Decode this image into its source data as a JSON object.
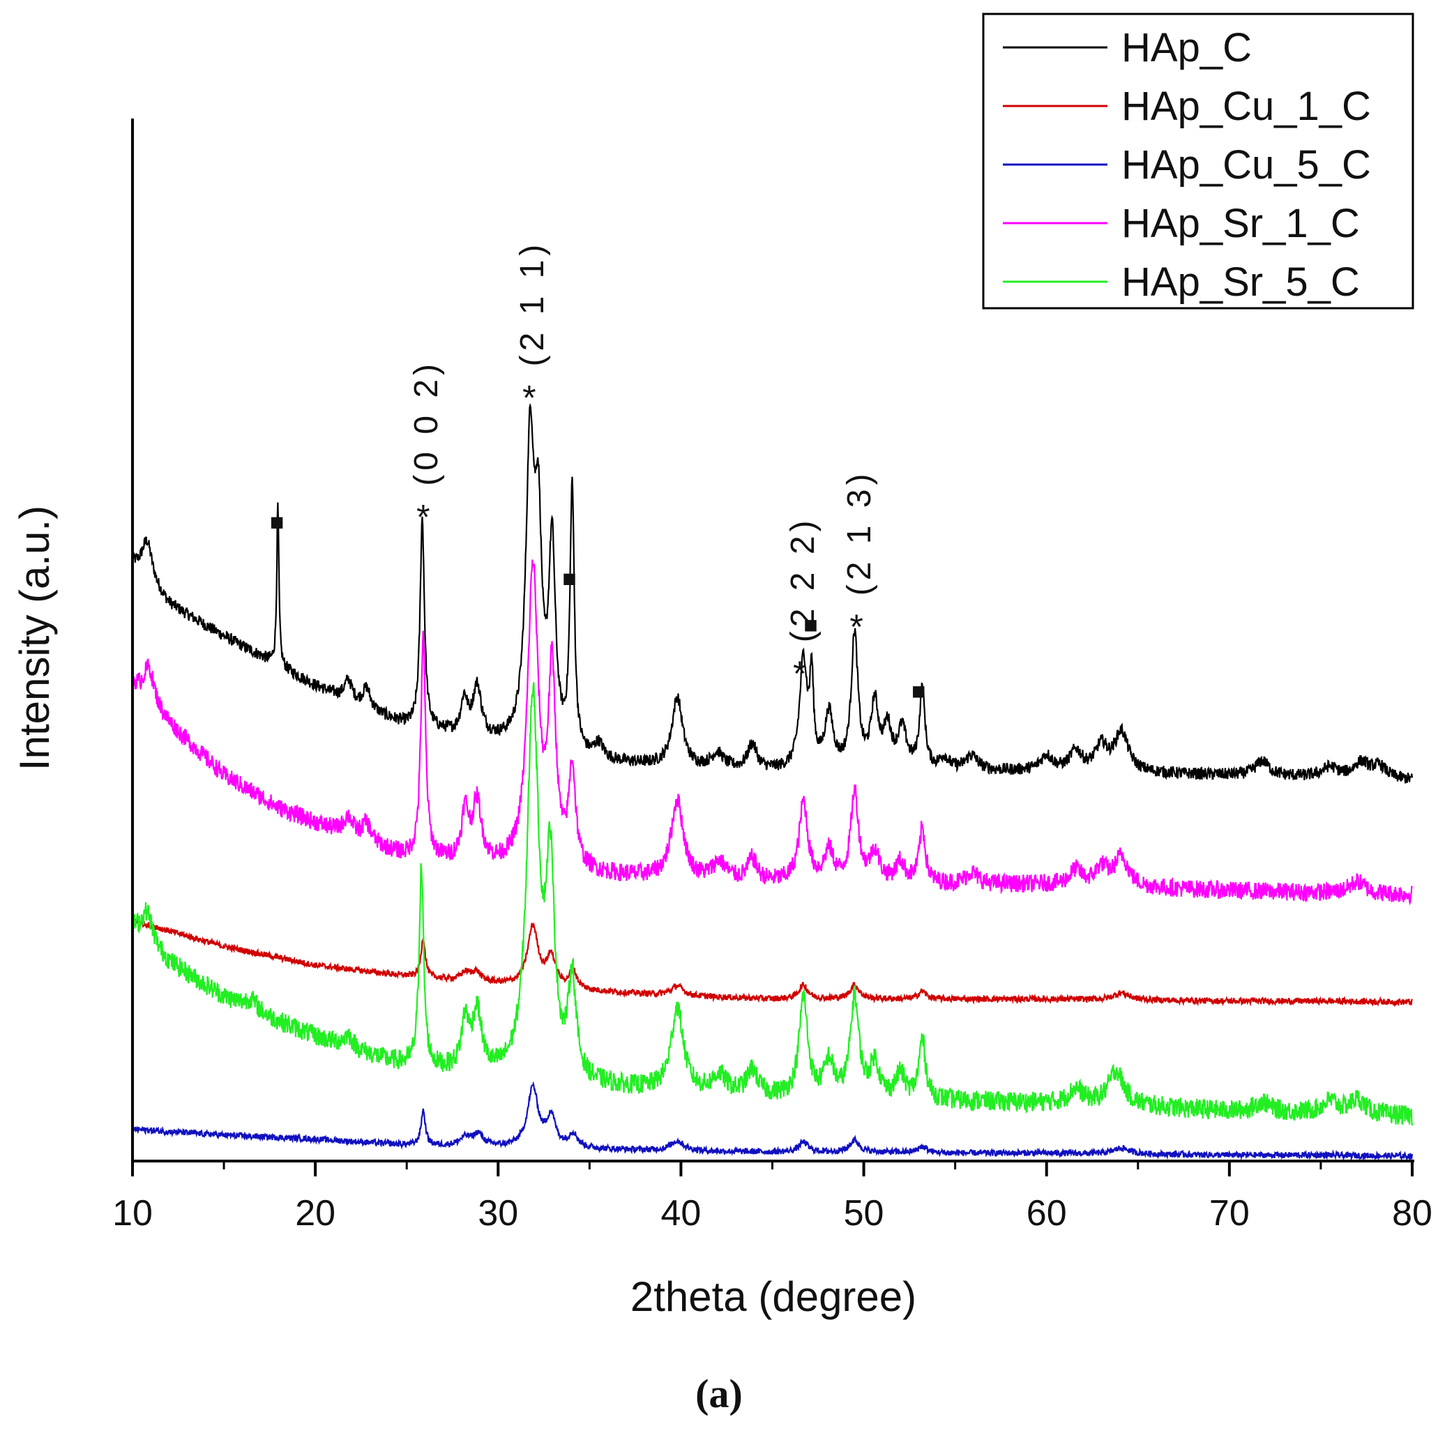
{
  "chart_data": {
    "type": "line",
    "title": "",
    "xlabel": "2theta (degree)",
    "ylabel": "Intensity (a.u.)",
    "xlim": [
      10,
      80
    ],
    "xticks": [
      10,
      20,
      30,
      40,
      50,
      60,
      70,
      80
    ],
    "yticks": [],
    "grid": false,
    "legend_position": "top-right",
    "caption": "(a)",
    "y_units": "arbitrary intensity units; offset-stacked patterns",
    "series": [
      {
        "name": "HAp_C",
        "color": "#000000",
        "baseline": [
          [
            10,
            600
          ],
          [
            12,
            560
          ],
          [
            15,
            528
          ],
          [
            18,
            498
          ],
          [
            20,
            478
          ],
          [
            24,
            445
          ],
          [
            25,
            438
          ],
          [
            30,
            420
          ],
          [
            35,
            402
          ],
          [
            40,
            395
          ],
          [
            45,
            392
          ],
          [
            50,
            392
          ],
          [
            55,
            392
          ],
          [
            60,
            392
          ],
          [
            65,
            390
          ],
          [
            70,
            388
          ],
          [
            75,
            386
          ],
          [
            80,
            383
          ]
        ],
        "peaks": [
          [
            10.8,
            40,
            0.35
          ],
          [
            17.95,
            160,
            0.07
          ],
          [
            21.8,
            20,
            0.25
          ],
          [
            22.8,
            20,
            0.25
          ],
          [
            25.85,
            210,
            0.14
          ],
          [
            28.15,
            35,
            0.22
          ],
          [
            28.85,
            50,
            0.28
          ],
          [
            31.75,
            300,
            0.28
          ],
          [
            32.2,
            190,
            0.22
          ],
          [
            32.95,
            200,
            0.22
          ],
          [
            34.05,
            265,
            0.14
          ],
          [
            35.5,
            15,
            0.3
          ],
          [
            39.8,
            70,
            0.35
          ],
          [
            42.0,
            15,
            0.4
          ],
          [
            43.9,
            25,
            0.3
          ],
          [
            46.7,
            110,
            0.25
          ],
          [
            47.15,
            85,
            0.12
          ],
          [
            48.1,
            55,
            0.28
          ],
          [
            49.5,
            135,
            0.22
          ],
          [
            50.6,
            65,
            0.25
          ],
          [
            51.3,
            40,
            0.25
          ],
          [
            52.1,
            40,
            0.3
          ],
          [
            53.2,
            80,
            0.18
          ],
          [
            54.4,
            12,
            0.3
          ],
          [
            55.9,
            15,
            0.4
          ],
          [
            60.0,
            15,
            0.4
          ],
          [
            61.6,
            20,
            0.4
          ],
          [
            63.0,
            25,
            0.4
          ],
          [
            64.1,
            40,
            0.45
          ],
          [
            71.8,
            15,
            0.45
          ],
          [
            75.5,
            10,
            0.5
          ],
          [
            77.2,
            15,
            0.5
          ],
          [
            78.2,
            12,
            0.5
          ]
        ],
        "noise": 6
      },
      {
        "name": "HAp_Cu_1_C",
        "color": "#d00000",
        "baseline": [
          [
            10,
            242
          ],
          [
            15,
            216
          ],
          [
            20,
            197
          ],
          [
            25,
            186
          ],
          [
            30,
            178
          ],
          [
            35,
            171
          ],
          [
            40,
            166
          ],
          [
            45,
            163
          ],
          [
            50,
            163
          ],
          [
            55,
            163
          ],
          [
            60,
            163
          ],
          [
            65,
            162
          ],
          [
            70,
            161
          ],
          [
            75,
            161
          ],
          [
            80,
            160
          ]
        ],
        "peaks": [
          [
            25.9,
            40,
            0.14
          ],
          [
            28.2,
            8,
            0.3
          ],
          [
            28.8,
            10,
            0.3
          ],
          [
            31.9,
            60,
            0.35
          ],
          [
            32.9,
            30,
            0.3
          ],
          [
            34.1,
            18,
            0.25
          ],
          [
            39.8,
            10,
            0.4
          ],
          [
            46.7,
            14,
            0.3
          ],
          [
            49.5,
            14,
            0.3
          ],
          [
            53.2,
            8,
            0.25
          ],
          [
            64.1,
            7,
            0.5
          ]
        ],
        "noise": 3
      },
      {
        "name": "HAp_Cu_5_C",
        "color": "#1010c0",
        "baseline": [
          [
            10,
            32
          ],
          [
            15,
            26
          ],
          [
            20,
            22
          ],
          [
            25,
            16
          ],
          [
            30,
            14
          ],
          [
            35,
            12
          ],
          [
            40,
            10
          ],
          [
            45,
            9
          ],
          [
            50,
            9
          ],
          [
            55,
            8
          ],
          [
            60,
            8
          ],
          [
            65,
            7
          ],
          [
            70,
            6
          ],
          [
            75,
            6
          ],
          [
            80,
            5
          ]
        ],
        "peaks": [
          [
            25.9,
            35,
            0.14
          ],
          [
            28.2,
            8,
            0.35
          ],
          [
            28.9,
            12,
            0.35
          ],
          [
            31.9,
            60,
            0.35
          ],
          [
            32.9,
            30,
            0.3
          ],
          [
            34.1,
            14,
            0.3
          ],
          [
            39.8,
            10,
            0.45
          ],
          [
            46.7,
            10,
            0.3
          ],
          [
            49.5,
            12,
            0.3
          ],
          [
            53.2,
            6,
            0.3
          ],
          [
            64.1,
            6,
            0.5
          ]
        ],
        "noise": 3
      },
      {
        "name": "HAp_Sr_1_C",
        "color": "#ff00ff",
        "baseline": [
          [
            10,
            480
          ],
          [
            12,
            440
          ],
          [
            15,
            388
          ],
          [
            18,
            355
          ],
          [
            20,
            340
          ],
          [
            24,
            312
          ],
          [
            25,
            305
          ],
          [
            30,
            295
          ],
          [
            35,
            288
          ],
          [
            40,
            282
          ],
          [
            45,
            280
          ],
          [
            50,
            280
          ],
          [
            55,
            278
          ],
          [
            60,
            278
          ],
          [
            65,
            275
          ],
          [
            70,
            272
          ],
          [
            75,
            270
          ],
          [
            80,
            268
          ]
        ],
        "peaks": [
          [
            10.9,
            35,
            0.35
          ],
          [
            21.8,
            18,
            0.3
          ],
          [
            22.8,
            18,
            0.3
          ],
          [
            25.9,
            220,
            0.16
          ],
          [
            28.2,
            50,
            0.24
          ],
          [
            28.85,
            60,
            0.28
          ],
          [
            31.9,
            300,
            0.35
          ],
          [
            32.95,
            190,
            0.25
          ],
          [
            34.05,
            100,
            0.22
          ],
          [
            39.8,
            80,
            0.4
          ],
          [
            42.1,
            18,
            0.45
          ],
          [
            43.9,
            22,
            0.3
          ],
          [
            46.7,
            80,
            0.28
          ],
          [
            48.1,
            30,
            0.3
          ],
          [
            49.5,
            90,
            0.25
          ],
          [
            50.6,
            30,
            0.3
          ],
          [
            52.0,
            20,
            0.3
          ],
          [
            53.2,
            55,
            0.2
          ],
          [
            55.9,
            12,
            0.4
          ],
          [
            61.6,
            15,
            0.4
          ],
          [
            63.0,
            18,
            0.4
          ],
          [
            64.1,
            30,
            0.45
          ],
          [
            77.0,
            12,
            0.5
          ]
        ],
        "noise": 9
      },
      {
        "name": "HAp_Sr_5_C",
        "color": "#22ee22",
        "baseline": [
          [
            10,
            235
          ],
          [
            12,
            200
          ],
          [
            15,
            165
          ],
          [
            18,
            140
          ],
          [
            20,
            125
          ],
          [
            24,
            100
          ],
          [
            25,
            95
          ],
          [
            30,
            82
          ],
          [
            35,
            75
          ],
          [
            40,
            68
          ],
          [
            45,
            64
          ],
          [
            50,
            62
          ],
          [
            55,
            60
          ],
          [
            60,
            58
          ],
          [
            65,
            55
          ],
          [
            70,
            50
          ],
          [
            75,
            48
          ],
          [
            80,
            45
          ]
        ],
        "peaks": [
          [
            10.8,
            30,
            0.35
          ],
          [
            16.5,
            10,
            0.4
          ],
          [
            21.8,
            12,
            0.3
          ],
          [
            25.8,
            200,
            0.15
          ],
          [
            28.2,
            50,
            0.25
          ],
          [
            28.85,
            60,
            0.3
          ],
          [
            31.9,
            380,
            0.38
          ],
          [
            32.85,
            200,
            0.28
          ],
          [
            34.05,
            100,
            0.25
          ],
          [
            39.8,
            85,
            0.4
          ],
          [
            42.1,
            18,
            0.45
          ],
          [
            43.9,
            25,
            0.35
          ],
          [
            46.7,
            100,
            0.28
          ],
          [
            48.1,
            35,
            0.3
          ],
          [
            49.5,
            100,
            0.28
          ],
          [
            50.6,
            35,
            0.3
          ],
          [
            52.0,
            25,
            0.3
          ],
          [
            53.2,
            60,
            0.22
          ],
          [
            61.6,
            15,
            0.45
          ],
          [
            63.8,
            35,
            0.5
          ],
          [
            71.8,
            10,
            0.5
          ],
          [
            75.5,
            12,
            0.5
          ],
          [
            77.0,
            15,
            0.5
          ]
        ],
        "noise": 10
      }
    ],
    "annotations": [
      {
        "text": "*",
        "x": 25.9,
        "series": "HAp_C",
        "label": "(0 0 2)"
      },
      {
        "text": "*",
        "x": 31.7,
        "series": "HAp_C",
        "label": "(2 1 1)"
      },
      {
        "text": "*",
        "x": 46.5,
        "series": "HAp_C",
        "label": "(2 2 2)"
      },
      {
        "text": "*",
        "x": 49.6,
        "series": "HAp_C",
        "label": "(2 1 3)"
      },
      {
        "text": "■",
        "x": 17.9,
        "series": "HAp_C"
      },
      {
        "text": "■",
        "x": 33.9,
        "series": "HAp_C"
      },
      {
        "text": "■",
        "x": 47.1,
        "series": "HAp_C"
      },
      {
        "text": "■",
        "x": 53.0,
        "series": "HAp_C"
      }
    ]
  }
}
